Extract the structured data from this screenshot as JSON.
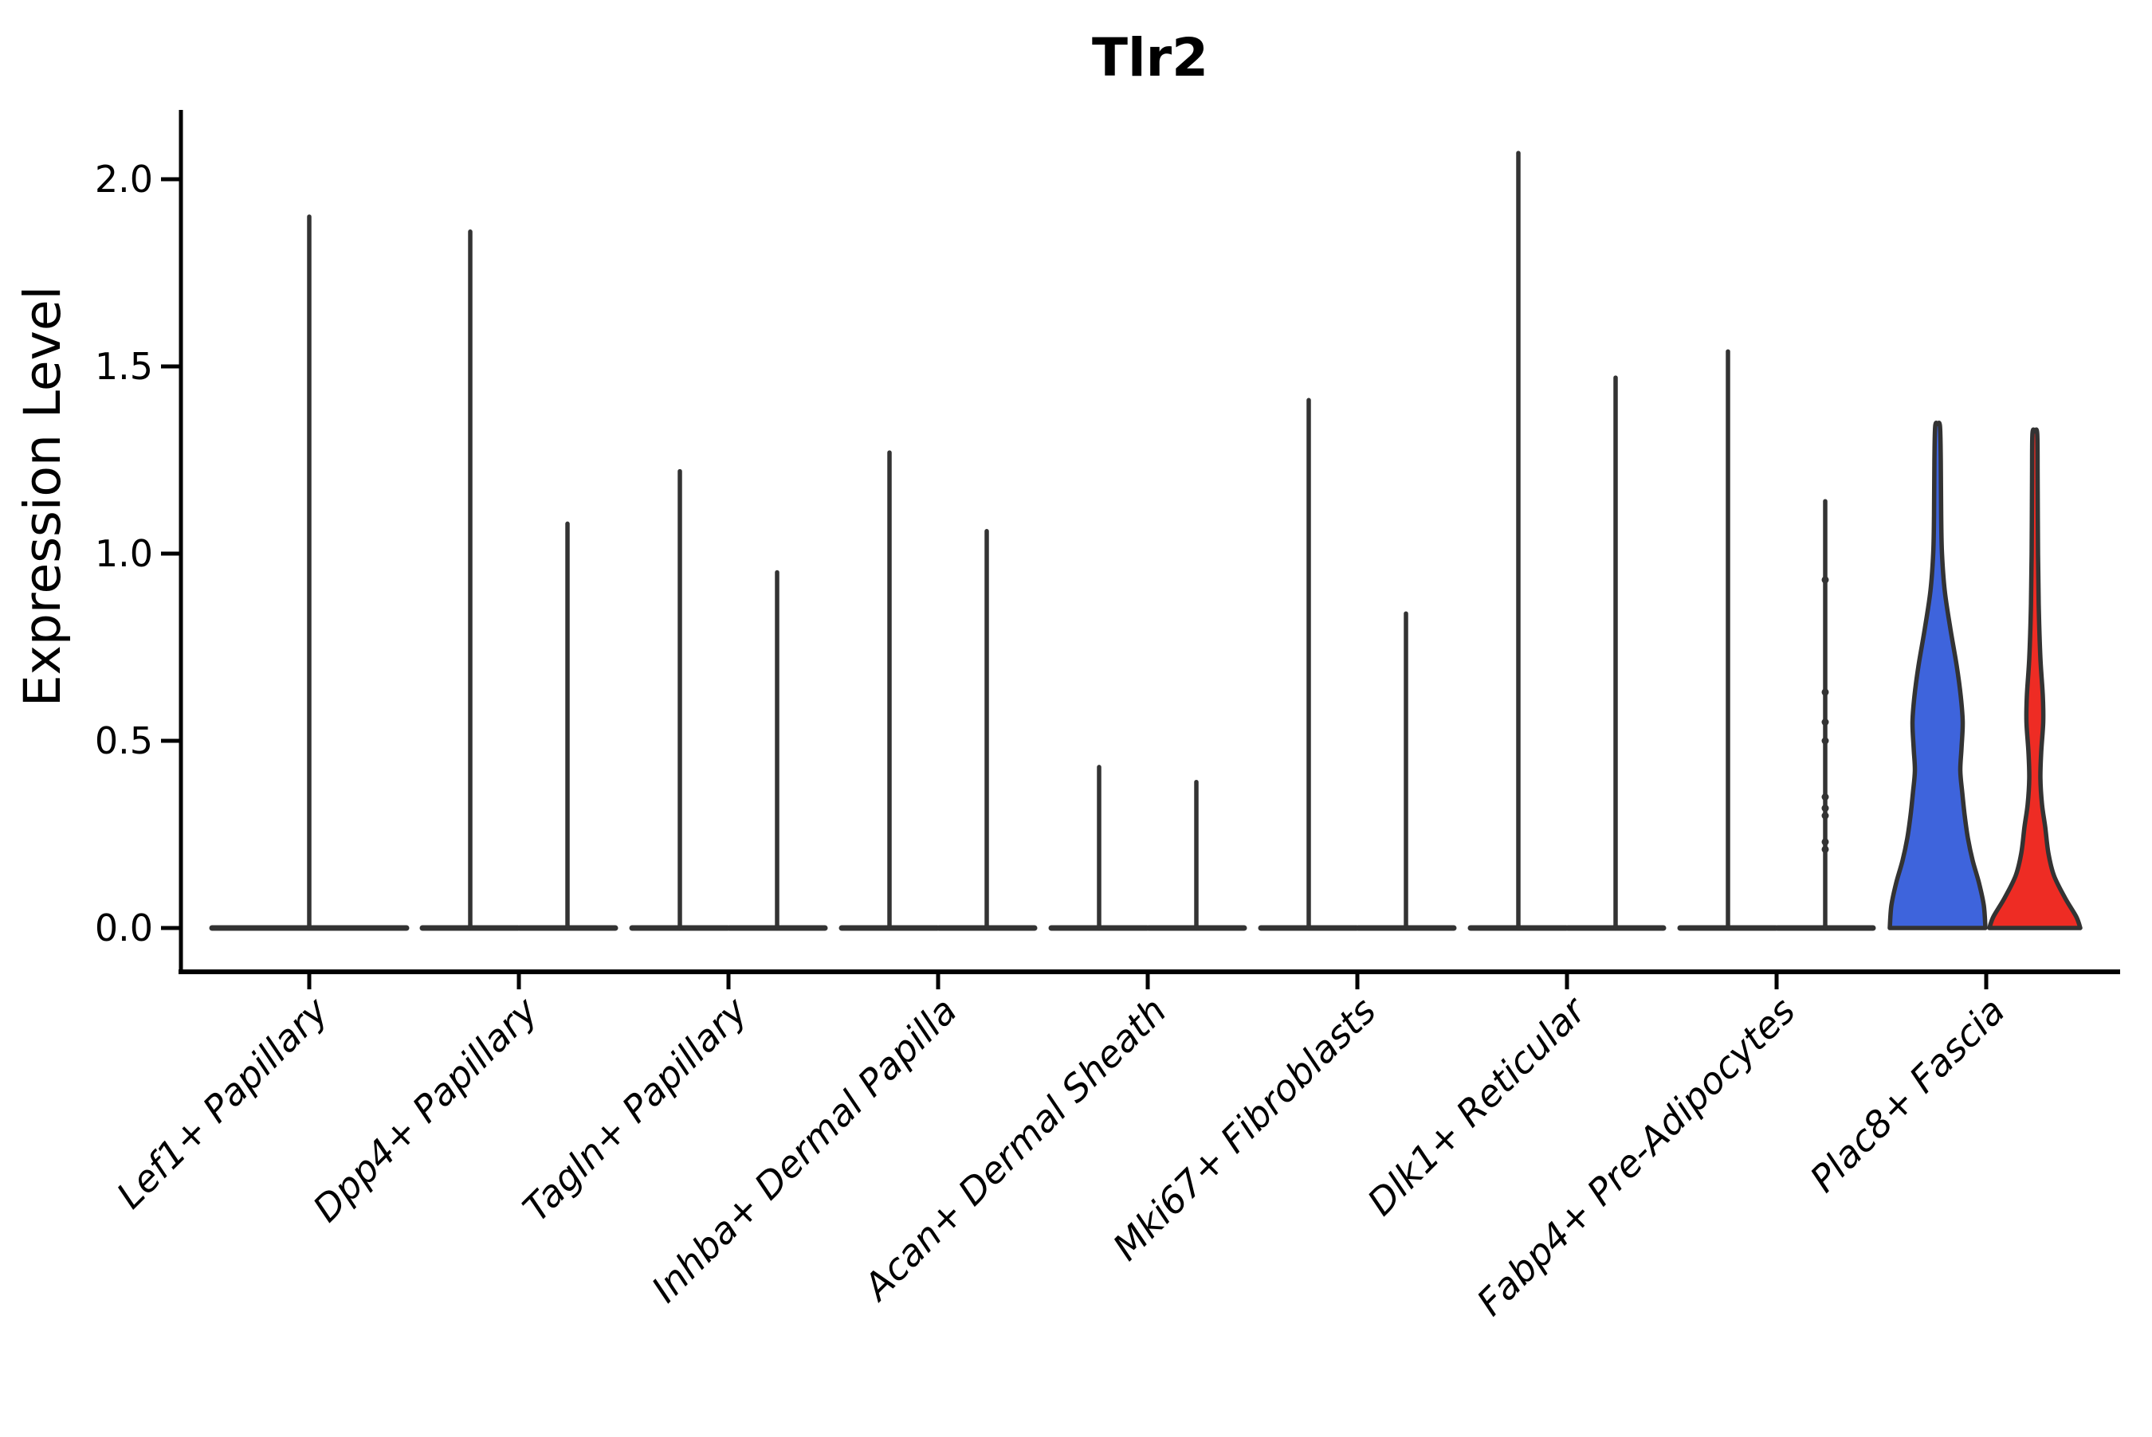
{
  "chart_data": {
    "type": "violin",
    "title": "Tlr2",
    "ylabel": "Expression Level",
    "ylim": [
      0,
      2.1
    ],
    "y_tick_values": [
      2.0,
      1.5,
      1.0,
      0.5,
      0.0
    ],
    "y_tick_labels": [
      "2.0",
      "1.5",
      "1.0",
      "0.5",
      "0.0"
    ],
    "legend": "none",
    "grid": "off",
    "categories": [
      "Lef1+ Papillary",
      "Dpp4+ Papillary",
      "Tagln+ Papillary",
      "Inhba+ Dermal Papilla",
      "Acan+ Dermal Sheath",
      "Mki67+ Fibroblasts",
      "Dlk1+ Reticular",
      "Fabp4+ Pre-Adipocytes",
      "Plac8+ Fascia"
    ],
    "groups": [
      {
        "category": "Lef1+ Papillary",
        "violins": [
          {
            "kind": "spike",
            "width": "full",
            "max": 1.9
          }
        ]
      },
      {
        "category": "Dpp4+ Papillary",
        "violins": [
          {
            "kind": "spike",
            "max": 1.86
          },
          {
            "kind": "spike",
            "max": 1.08
          }
        ]
      },
      {
        "category": "Tagln+ Papillary",
        "violins": [
          {
            "kind": "spike",
            "max": 1.22
          },
          {
            "kind": "spike",
            "max": 0.95
          }
        ]
      },
      {
        "category": "Inhba+ Dermal Papilla",
        "violins": [
          {
            "kind": "spike",
            "max": 1.27
          },
          {
            "kind": "spike",
            "max": 1.06
          }
        ]
      },
      {
        "category": "Acan+ Dermal Sheath",
        "violins": [
          {
            "kind": "spike",
            "max": 0.43
          },
          {
            "kind": "spike",
            "max": 0.39
          }
        ]
      },
      {
        "category": "Mki67+ Fibroblasts",
        "violins": [
          {
            "kind": "spike",
            "max": 1.41
          },
          {
            "kind": "spike",
            "max": 0.84
          }
        ]
      },
      {
        "category": "Dlk1+ Reticular",
        "violins": [
          {
            "kind": "spike",
            "max": 2.07
          },
          {
            "kind": "spike",
            "max": 1.47
          }
        ]
      },
      {
        "category": "Fabp4+ Pre-Adipocytes",
        "violins": [
          {
            "kind": "spike",
            "max": 1.54
          },
          {
            "kind": "spike",
            "max": 1.14,
            "points": [
              0.93,
              0.63,
              0.55,
              0.5,
              0.35,
              0.32,
              0.3,
              0.23,
              0.21
            ]
          }
        ]
      },
      {
        "category": "Plac8+ Fascia",
        "violins": [
          {
            "kind": "density",
            "fill": "blue",
            "max": 1.34,
            "profile": [
              [
                0.0,
                60
              ],
              [
                0.06,
                58
              ],
              [
                0.12,
                52
              ],
              [
                0.18,
                44
              ],
              [
                0.24,
                38
              ],
              [
                0.3,
                34
              ],
              [
                0.36,
                31
              ],
              [
                0.42,
                28.5
              ],
              [
                0.48,
                30
              ],
              [
                0.55,
                31.5
              ],
              [
                0.62,
                29
              ],
              [
                0.7,
                24
              ],
              [
                0.8,
                16
              ],
              [
                0.9,
                9
              ],
              [
                1.0,
                5.5
              ],
              [
                1.1,
                4.5
              ],
              [
                1.25,
                4
              ],
              [
                1.34,
                3
              ]
            ]
          },
          {
            "kind": "density",
            "fill": "red",
            "max": 1.32,
            "profile": [
              [
                0.0,
                57
              ],
              [
                0.03,
                52
              ],
              [
                0.08,
                38
              ],
              [
                0.14,
                24
              ],
              [
                0.2,
                17
              ],
              [
                0.27,
                13
              ],
              [
                0.33,
                9
              ],
              [
                0.4,
                7
              ],
              [
                0.47,
                8
              ],
              [
                0.55,
                10.5
              ],
              [
                0.62,
                10
              ],
              [
                0.72,
                7
              ],
              [
                0.85,
                5
              ],
              [
                1.0,
                4
              ],
              [
                1.2,
                3.5
              ],
              [
                1.32,
                3
              ]
            ]
          }
        ]
      }
    ]
  },
  "colors": {
    "split_blue": "#3E64DC",
    "split_red": "#EE2C24",
    "violin_outline": "#333333",
    "axis": "#000000",
    "background": "#ffffff"
  }
}
